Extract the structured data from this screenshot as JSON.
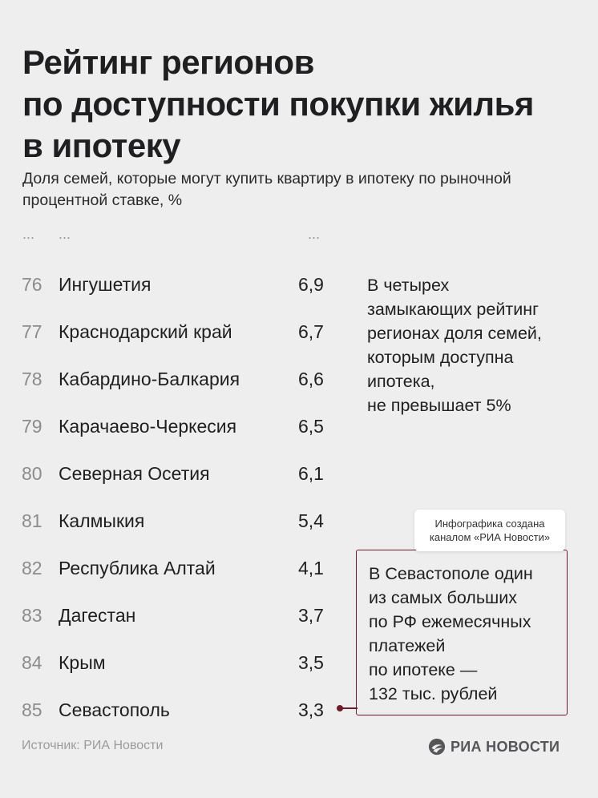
{
  "title": {
    "line1": "Рейтинг регионов",
    "line2": "по доступности покупки жилья",
    "line3": "в ипотеку"
  },
  "subtitle": "Доля семей, которые могут купить квартиру в ипотеку по рыночной процентной ставке, %",
  "ellipsis": {
    "rank": "...",
    "region": "...",
    "value": "..."
  },
  "ranking": [
    {
      "rank": "76",
      "region": "Ингушетия",
      "value": "6,9"
    },
    {
      "rank": "77",
      "region": "Краснодарский край",
      "value": "6,7"
    },
    {
      "rank": "78",
      "region": "Кабардино-Балкария",
      "value": "6,6"
    },
    {
      "rank": "79",
      "region": "Карачаево-Черкесия",
      "value": "6,5"
    },
    {
      "rank": "80",
      "region": "Северная Осетия",
      "value": "6,1"
    },
    {
      "rank": "81",
      "region": "Калмыкия",
      "value": "5,4"
    },
    {
      "rank": "82",
      "region": "Республика Алтай",
      "value": "4,1"
    },
    {
      "rank": "83",
      "region": "Дагестан",
      "value": "3,7"
    },
    {
      "rank": "84",
      "region": "Крым",
      "value": "3,5"
    },
    {
      "rank": "85",
      "region": "Севастополь",
      "value": "3,3"
    }
  ],
  "note1": {
    "lines": [
      "В четырех",
      "замыкающих рейтинг",
      "регионах доля семей,",
      "которым доступна",
      "ипотека,",
      "не превышает 5%"
    ]
  },
  "credit": {
    "line1": "Инфографика создана",
    "line2": "каналом «РИА Новости»"
  },
  "note2": {
    "lines": [
      "В Севастополе один",
      "из самых больших",
      "по РФ ежемесячных",
      "платежей",
      "по ипотеке —",
      "132 тыс. рублей"
    ]
  },
  "source": "Источник: РИА Новости",
  "logo": {
    "text": "РИА НОВОСТИ",
    "icon": "ria-novosti-logo-icon"
  },
  "colors": {
    "background": "#efeeee",
    "accent": "#6e1b2b",
    "text": "#1f1f21",
    "muted": "#8c8c8c"
  }
}
